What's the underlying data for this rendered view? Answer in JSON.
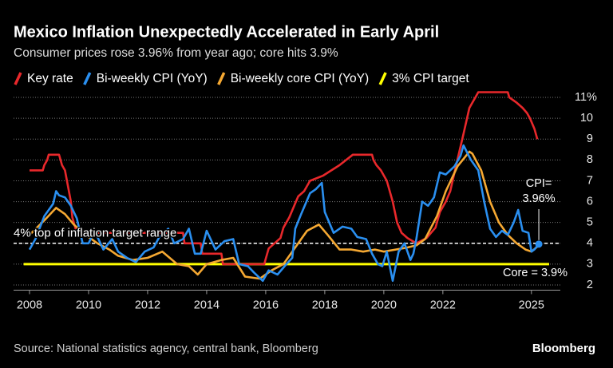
{
  "chart_data": {
    "type": "line",
    "title": "Mexico Inflation Unexpectedly Accelerated in Early April",
    "subtitle": "Consumer prices rose 3.96% from year ago; core hits 3.9%",
    "source": "Source: National statistics agency, central bank, Bloomberg",
    "brand": "Bloomberg",
    "xlim": [
      2007.8,
      2025.6
    ],
    "xticks": [
      2008,
      2010,
      2012,
      2014,
      2016,
      2018,
      2020,
      2022,
      2025
    ],
    "ylim": [
      1.75,
      11.5
    ],
    "yticks": [
      2,
      3,
      4,
      5,
      6,
      7,
      8,
      9,
      10,
      {
        "value": 11,
        "label": "11%"
      }
    ],
    "grid": true,
    "reference_line": {
      "value": 4,
      "label": "4% top of inflation target range"
    },
    "annotations": [
      {
        "label": "CPI=",
        "series": 1
      },
      {
        "label": "3.96%",
        "series": 1
      },
      {
        "label": "Core = 3.9%",
        "series": 2
      }
    ],
    "series": [
      {
        "name": "Key rate",
        "color": "#e8282b",
        "x": [
          2008.0,
          2008.45,
          2008.5,
          2008.6,
          2008.65,
          2009.0,
          2009.1,
          2009.2,
          2009.3,
          2009.4,
          2009.45,
          2009.55,
          2009.6,
          2013.2,
          2013.25,
          2013.8,
          2013.85,
          2014.5,
          2014.55,
          2015.95,
          2016.0,
          2016.1,
          2016.5,
          2016.6,
          2016.8,
          2016.95,
          2017.1,
          2017.3,
          2017.5,
          2017.95,
          2018.5,
          2018.95,
          2019.6,
          2019.65,
          2019.75,
          2019.9,
          2020.1,
          2020.2,
          2020.3,
          2020.45,
          2020.6,
          2020.8,
          2021.1,
          2021.45,
          2021.6,
          2021.75,
          2021.9,
          2022.1,
          2022.25,
          2022.45,
          2022.7,
          2022.9,
          2023.1,
          2023.2,
          2024.2,
          2024.25,
          2024.5,
          2024.7,
          2024.85,
          2024.95,
          2025.1,
          2025.2
        ],
        "values": [
          7.5,
          7.5,
          7.75,
          8.0,
          8.25,
          8.25,
          7.75,
          7.5,
          6.75,
          6.0,
          5.25,
          4.75,
          4.5,
          4.5,
          4.0,
          4.0,
          3.5,
          3.5,
          3.0,
          3.0,
          3.25,
          3.75,
          4.25,
          4.75,
          5.25,
          5.75,
          6.25,
          6.5,
          7.0,
          7.25,
          7.75,
          8.25,
          8.25,
          8.0,
          7.75,
          7.5,
          7.0,
          6.5,
          6.0,
          5.0,
          4.5,
          4.25,
          4.0,
          4.25,
          4.5,
          4.75,
          5.5,
          6.0,
          6.5,
          7.75,
          9.25,
          10.5,
          11.0,
          11.25,
          11.25,
          11.0,
          10.75,
          10.5,
          10.25,
          10.0,
          9.5,
          9.0
        ]
      },
      {
        "name": "Bi-weekly CPI (YoY)",
        "color": "#2a8ff0",
        "x": [
          2008.0,
          2008.2,
          2008.5,
          2008.8,
          2008.9,
          2009.0,
          2009.2,
          2009.4,
          2009.6,
          2009.8,
          2010.0,
          2010.2,
          2010.5,
          2010.8,
          2011.0,
          2011.3,
          2011.6,
          2011.9,
          2012.2,
          2012.4,
          2012.7,
          2012.9,
          2013.2,
          2013.4,
          2013.6,
          2013.8,
          2014.0,
          2014.3,
          2014.6,
          2014.9,
          2015.1,
          2015.4,
          2015.6,
          2015.9,
          2016.1,
          2016.4,
          2016.7,
          2016.9,
          2017.0,
          2017.2,
          2017.5,
          2017.7,
          2017.9,
          2018.0,
          2018.3,
          2018.6,
          2018.9,
          2019.1,
          2019.4,
          2019.6,
          2019.8,
          2019.95,
          2020.1,
          2020.3,
          2020.5,
          2020.7,
          2020.9,
          2021.0,
          2021.1,
          2021.3,
          2021.5,
          2021.7,
          2021.9,
          2022.1,
          2022.4,
          2022.6,
          2022.7,
          2022.95,
          2023.2,
          2023.4,
          2023.6,
          2023.8,
          2024.0,
          2024.2,
          2024.4,
          2024.55,
          2024.7,
          2024.9,
          2025.0,
          2025.1,
          2025.25
        ],
        "values": [
          3.7,
          4.2,
          5.3,
          5.9,
          6.5,
          6.3,
          6.2,
          5.8,
          5.2,
          4.0,
          4.0,
          4.6,
          3.7,
          4.2,
          3.6,
          3.3,
          3.1,
          3.6,
          3.8,
          4.3,
          4.7,
          4.0,
          4.2,
          4.7,
          3.5,
          3.5,
          4.6,
          3.7,
          4.1,
          4.2,
          3.0,
          2.9,
          2.6,
          2.2,
          2.7,
          2.5,
          3.0,
          3.3,
          4.7,
          5.4,
          6.4,
          6.6,
          6.9,
          5.5,
          4.5,
          4.8,
          4.7,
          4.3,
          4.2,
          3.5,
          3.0,
          2.9,
          3.6,
          2.2,
          3.6,
          4.0,
          3.2,
          3.5,
          4.2,
          6.0,
          5.8,
          6.2,
          7.4,
          7.3,
          7.7,
          8.2,
          8.7,
          8.0,
          7.5,
          6.0,
          4.7,
          4.3,
          4.6,
          4.4,
          5.0,
          5.6,
          4.6,
          4.5,
          3.6,
          3.7,
          3.96
        ]
      },
      {
        "name": "Bi-weekly core CPI (YoY)",
        "color": "#f5a832",
        "x": [
          2008.0,
          2008.5,
          2008.9,
          2009.2,
          2009.5,
          2009.9,
          2010.3,
          2010.7,
          2011.0,
          2011.5,
          2012.0,
          2012.5,
          2013.0,
          2013.4,
          2013.7,
          2014.0,
          2014.5,
          2014.9,
          2015.3,
          2015.8,
          2016.2,
          2016.6,
          2017.0,
          2017.4,
          2017.8,
          2018.1,
          2018.5,
          2018.9,
          2019.3,
          2019.7,
          2020.0,
          2020.4,
          2020.8,
          2021.1,
          2021.4,
          2021.8,
          2022.1,
          2022.5,
          2022.9,
          2023.0,
          2023.3,
          2023.6,
          2023.9,
          2024.2,
          2024.5,
          2024.8,
          2025.0,
          2025.25
        ],
        "values": [
          4.4,
          5.1,
          5.7,
          5.4,
          4.9,
          4.4,
          4.0,
          3.7,
          3.4,
          3.2,
          3.3,
          3.6,
          3.0,
          2.9,
          2.5,
          3.0,
          3.2,
          3.3,
          2.4,
          2.3,
          2.7,
          3.0,
          3.8,
          4.6,
          4.9,
          4.4,
          3.7,
          3.7,
          3.6,
          3.7,
          3.6,
          3.7,
          3.8,
          3.9,
          4.2,
          5.3,
          6.5,
          7.7,
          8.4,
          8.3,
          7.5,
          6.0,
          5.0,
          4.4,
          4.0,
          3.7,
          3.6,
          3.9
        ]
      },
      {
        "name": "3% CPI target",
        "color": "#ffff00",
        "x": [
          2007.8,
          2025.6
        ],
        "values": [
          3,
          3
        ]
      }
    ]
  }
}
